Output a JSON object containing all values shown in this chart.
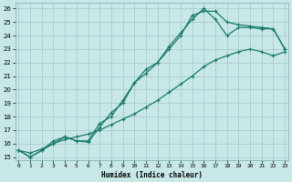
{
  "xlabel": "Humidex (Indice chaleur)",
  "bg_color": "#c8e8e8",
  "grid_color": "#a8cccc",
  "line_color": "#1a7a6a",
  "xlim": [
    -0.3,
    23.3
  ],
  "ylim": [
    14.8,
    26.4
  ],
  "xticks": [
    0,
    1,
    2,
    3,
    4,
    5,
    6,
    7,
    8,
    9,
    10,
    11,
    12,
    13,
    14,
    15,
    16,
    17,
    18,
    19,
    20,
    21,
    22,
    23
  ],
  "yticks": [
    15,
    16,
    17,
    18,
    19,
    20,
    21,
    22,
    23,
    24,
    25,
    26
  ],
  "line1_x": [
    0,
    1,
    2,
    3,
    4,
    5,
    6,
    7,
    8,
    9,
    10,
    11,
    12,
    13,
    14,
    15,
    16,
    17,
    18,
    19,
    20,
    21,
    22,
    23
  ],
  "line1_y": [
    15.5,
    15.0,
    15.5,
    16.2,
    16.5,
    16.2,
    16.2,
    17.5,
    18.0,
    19.2,
    20.5,
    21.5,
    22.0,
    23.2,
    24.2,
    25.2,
    26.0,
    25.2,
    24.0,
    24.6,
    24.6,
    24.5,
    24.5,
    23.0
  ],
  "line2_x": [
    0,
    1,
    2,
    3,
    4,
    5,
    6,
    7,
    8,
    9,
    10,
    11,
    12,
    13,
    14,
    15,
    16,
    17,
    18,
    19,
    20,
    21,
    22,
    23
  ],
  "line2_y": [
    15.5,
    15.0,
    15.5,
    16.0,
    16.5,
    16.2,
    16.1,
    17.2,
    18.3,
    19.0,
    20.5,
    21.2,
    22.0,
    23.0,
    24.0,
    25.5,
    25.8,
    25.8,
    25.0,
    24.8,
    24.7,
    24.6,
    24.5,
    23.0
  ],
  "line3_x": [
    0,
    1,
    2,
    3,
    4,
    5,
    6,
    7,
    8,
    9,
    10,
    11,
    12,
    13,
    14,
    15,
    16,
    17,
    18,
    19,
    20,
    21,
    22,
    23
  ],
  "line3_y": [
    15.5,
    15.3,
    15.6,
    16.0,
    16.3,
    16.5,
    16.7,
    17.0,
    17.4,
    17.8,
    18.2,
    18.7,
    19.2,
    19.8,
    20.4,
    21.0,
    21.7,
    22.2,
    22.5,
    22.8,
    23.0,
    22.8,
    22.5,
    22.8
  ]
}
